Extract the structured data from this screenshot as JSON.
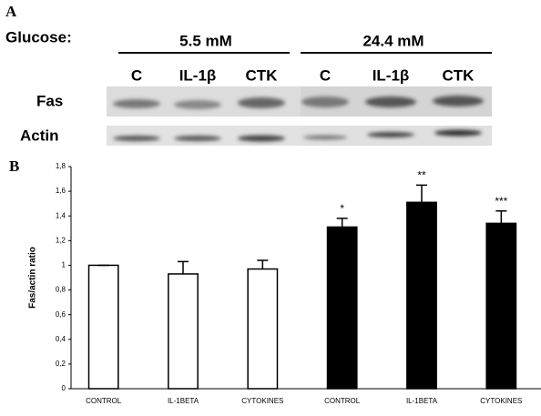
{
  "blot": {
    "panel_label": "A",
    "glucose_label": "Glucose:",
    "groups": [
      "5.5 mM",
      "24.4 mM"
    ],
    "lanes": [
      "C",
      "IL-1β",
      "CTK",
      "C",
      "IL-1β",
      "CTK"
    ],
    "rows": [
      "Fas",
      "Actin"
    ]
  },
  "chart_data": {
    "type": "bar",
    "panel_label": "B",
    "y_label": "Fas/actin ratio",
    "categories": [
      "CONTROL",
      "IL-1BETA",
      "CYTOKINES",
      "CONTROL",
      "IL-1BETA",
      "CYTOKINES"
    ],
    "values": [
      1,
      0.93,
      0.97,
      1.31,
      1.51,
      1.34
    ],
    "errors": [
      0,
      0.1,
      0.07,
      0.07,
      0.14,
      0.1
    ],
    "colors": [
      "#ffffff",
      "#ffffff",
      "#ffffff",
      "#000000",
      "#000000",
      "#000000"
    ],
    "annotations": [
      null,
      null,
      null,
      "*",
      "**",
      "***"
    ],
    "ylim": [
      0,
      1.8
    ],
    "yticks": [
      0,
      {
        "value": 0.2,
        "label": "0,2"
      },
      {
        "value": 0.4,
        "label": "0,4"
      },
      {
        "value": 0.6,
        "label": "0,6"
      },
      {
        "value": 0.8,
        "label": "0,8"
      },
      1,
      {
        "value": 1.2,
        "label": "1,2"
      },
      {
        "value": 1.4,
        "label": "1,4"
      },
      {
        "value": 1.6,
        "label": "1,6"
      },
      {
        "value": 1.8,
        "label": "1,8"
      }
    ]
  }
}
